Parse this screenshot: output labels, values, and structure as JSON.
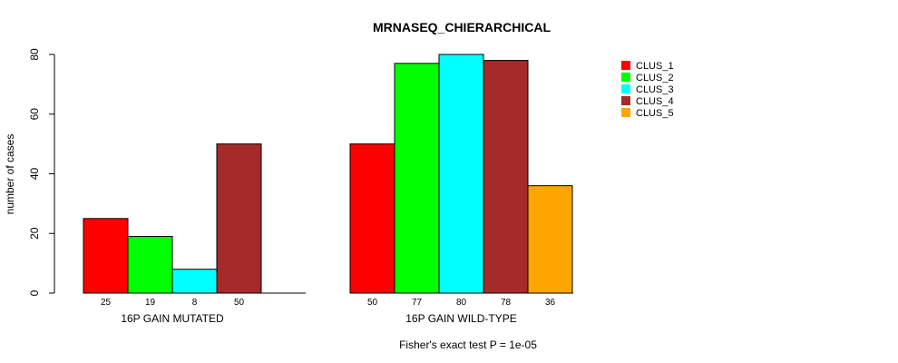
{
  "chart_data": {
    "type": "bar",
    "title": "MRNASEQ_CHIERARCHICAL",
    "ylabel": "number of cases",
    "ylim": [
      0,
      80
    ],
    "yticks": [
      0,
      20,
      40,
      60,
      80
    ],
    "footer": "Fisher's exact test P = 1e-05",
    "colors": {
      "CLUS_1": "#ff0000",
      "CLUS_2": "#00ff00",
      "CLUS_3": "#00ffff",
      "CLUS_4": "#a52a2a",
      "CLUS_5": "#ffa500"
    },
    "legend": [
      "CLUS_1",
      "CLUS_2",
      "CLUS_3",
      "CLUS_4",
      "CLUS_5"
    ],
    "groups": [
      {
        "name": "16P GAIN MUTATED",
        "bars": [
          {
            "series": "CLUS_1",
            "value": 25,
            "label": "25"
          },
          {
            "series": "CLUS_2",
            "value": 19,
            "label": "19"
          },
          {
            "series": "CLUS_3",
            "value": 8,
            "label": "8"
          },
          {
            "series": "CLUS_4",
            "value": 50,
            "label": "50"
          },
          {
            "series": "CLUS_5",
            "value": 0,
            "label": ""
          }
        ]
      },
      {
        "name": "16P GAIN WILD-TYPE",
        "bars": [
          {
            "series": "CLUS_1",
            "value": 50,
            "label": "50"
          },
          {
            "series": "CLUS_2",
            "value": 77,
            "label": "77"
          },
          {
            "series": "CLUS_3",
            "value": 80,
            "label": "80"
          },
          {
            "series": "CLUS_4",
            "value": 78,
            "label": "78"
          },
          {
            "series": "CLUS_5",
            "value": 36,
            "label": "36"
          }
        ]
      }
    ]
  }
}
